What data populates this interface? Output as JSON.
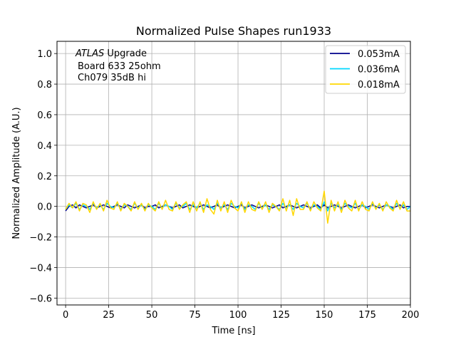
{
  "chart_data": {
    "type": "line",
    "title": "Normalized Pulse Shapes run1933",
    "xlabel": "Time [ns]",
    "ylabel": "Normalized Amplitude (A.U.)",
    "xlim": [
      -5,
      200
    ],
    "ylim": [
      -0.645,
      1.08
    ],
    "xticks": [
      0,
      25,
      50,
      75,
      100,
      125,
      150,
      175,
      200
    ],
    "yticks": [
      -0.6,
      -0.4,
      -0.2,
      0.0,
      0.2,
      0.4,
      0.6,
      0.8,
      1.0
    ],
    "xtick_labels": [
      "0",
      "25",
      "50",
      "75",
      "100",
      "125",
      "150",
      "175",
      "200"
    ],
    "ytick_labels": [
      "−0.6",
      "−0.4",
      "−0.2",
      "0.0",
      "0.2",
      "0.4",
      "0.6",
      "0.8",
      "1.0"
    ],
    "grid": true,
    "legend_position": "top-right",
    "annotation": {
      "line1_italic": "ATLAS",
      "line1_rest": " Upgrade",
      "line2": "Board 633 25ohm",
      "line3": "Ch079 35dB hi"
    },
    "x": [
      0,
      2,
      4,
      6,
      8,
      10,
      12,
      14,
      16,
      18,
      20,
      22,
      24,
      26,
      28,
      30,
      32,
      34,
      36,
      38,
      40,
      42,
      44,
      46,
      48,
      50,
      52,
      54,
      56,
      58,
      60,
      62,
      64,
      66,
      68,
      70,
      72,
      74,
      76,
      78,
      80,
      82,
      84,
      86,
      88,
      90,
      92,
      94,
      96,
      98,
      100,
      102,
      104,
      106,
      108,
      110,
      112,
      114,
      116,
      118,
      120,
      122,
      124,
      126,
      128,
      130,
      132,
      134,
      136,
      138,
      140,
      142,
      144,
      146,
      148,
      150,
      152,
      154,
      156,
      158,
      160,
      162,
      164,
      166,
      168,
      170,
      172,
      174,
      176,
      178,
      180,
      182,
      184,
      186,
      188,
      190,
      192,
      194,
      196,
      198,
      200
    ],
    "series": [
      {
        "name": "0.053mA",
        "color": "#00008b",
        "values": [
          -0.03,
          0.0,
          0.01,
          -0.01,
          0.01,
          0.0,
          -0.01,
          0.0,
          0.01,
          -0.01,
          0.0,
          0.01,
          0.0,
          -0.01,
          0.0,
          0.01,
          0.0,
          -0.01,
          0.01,
          0.0,
          -0.01,
          0.0,
          0.01,
          -0.01,
          0.0,
          0.0,
          0.01,
          -0.01,
          0.0,
          0.01,
          0.0,
          -0.01,
          0.0,
          0.01,
          -0.01,
          0.0,
          0.01,
          0.0,
          -0.01,
          0.0,
          0.01,
          0.0,
          -0.01,
          0.0,
          0.01,
          -0.01,
          0.0,
          0.01,
          0.0,
          -0.01,
          0.0,
          0.01,
          -0.01,
          0.0,
          0.01,
          0.0,
          -0.01,
          0.0,
          0.01,
          0.0,
          -0.01,
          0.0,
          0.01,
          -0.01,
          0.0,
          0.01,
          0.0,
          -0.01,
          0.0,
          0.01,
          0.0,
          -0.01,
          0.0,
          0.01,
          -0.01,
          0.01,
          -0.01,
          0.0,
          0.01,
          0.0,
          -0.01,
          0.0,
          0.01,
          0.0,
          -0.01,
          0.0,
          0.01,
          -0.01,
          0.0,
          0.01,
          0.0,
          -0.01,
          0.0,
          0.01,
          0.0,
          -0.01,
          0.0,
          0.01,
          -0.01,
          0.0,
          0.0
        ]
      },
      {
        "name": "0.036mA",
        "color": "#00d7ff",
        "values": [
          -0.02,
          0.01,
          -0.01,
          0.02,
          -0.02,
          0.01,
          0.0,
          -0.02,
          0.02,
          -0.01,
          0.01,
          -0.02,
          0.02,
          0.0,
          -0.01,
          0.02,
          -0.02,
          0.01,
          0.0,
          -0.02,
          0.02,
          -0.01,
          0.01,
          -0.02,
          0.01,
          0.0,
          -0.02,
          0.02,
          -0.01,
          0.01,
          0.0,
          -0.02,
          0.02,
          -0.01,
          0.0,
          0.02,
          -0.02,
          0.01,
          -0.01,
          0.02,
          -0.02,
          0.01,
          0.0,
          -0.02,
          0.02,
          -0.01,
          0.01,
          -0.02,
          0.02,
          0.0,
          -0.01,
          0.02,
          -0.02,
          0.01,
          0.0,
          -0.02,
          0.02,
          -0.01,
          0.01,
          -0.02,
          0.01,
          0.0,
          -0.02,
          0.02,
          -0.01,
          0.01,
          -0.02,
          0.02,
          0.0,
          -0.01,
          0.02,
          -0.02,
          0.01,
          0.0,
          -0.02,
          0.03,
          -0.03,
          0.02,
          -0.01,
          0.01,
          -0.02,
          0.02,
          0.0,
          -0.01,
          0.02,
          -0.02,
          0.01,
          0.0,
          -0.02,
          0.02,
          -0.01,
          0.01,
          -0.02,
          0.01,
          0.0,
          -0.02,
          0.02,
          -0.01,
          0.01,
          -0.02,
          0.0
        ]
      },
      {
        "name": "0.018mA",
        "color": "#ffd700",
        "values": [
          -0.02,
          0.02,
          -0.01,
          0.03,
          -0.03,
          0.02,
          0.01,
          -0.04,
          0.03,
          -0.02,
          0.02,
          -0.03,
          0.04,
          -0.01,
          -0.02,
          0.03,
          -0.03,
          0.02,
          0.0,
          -0.03,
          0.03,
          -0.02,
          0.02,
          -0.03,
          0.02,
          -0.01,
          -0.03,
          0.03,
          -0.02,
          0.04,
          -0.02,
          -0.03,
          0.03,
          -0.02,
          0.01,
          0.03,
          -0.04,
          0.03,
          -0.03,
          0.03,
          -0.04,
          0.05,
          -0.02,
          -0.05,
          0.04,
          -0.03,
          0.03,
          -0.04,
          0.04,
          -0.01,
          -0.03,
          0.03,
          -0.04,
          0.03,
          -0.02,
          -0.03,
          0.03,
          -0.02,
          0.03,
          -0.04,
          0.02,
          0.0,
          -0.03,
          0.05,
          -0.03,
          0.04,
          -0.06,
          0.05,
          -0.02,
          -0.02,
          0.03,
          -0.03,
          0.03,
          -0.01,
          -0.03,
          0.1,
          -0.11,
          0.04,
          -0.03,
          0.03,
          -0.04,
          0.04,
          -0.01,
          -0.03,
          0.04,
          -0.03,
          0.03,
          -0.02,
          -0.03,
          0.03,
          -0.02,
          0.02,
          -0.03,
          0.03,
          -0.01,
          -0.03,
          0.04,
          -0.02,
          0.03,
          -0.03,
          -0.03
        ]
      }
    ]
  }
}
